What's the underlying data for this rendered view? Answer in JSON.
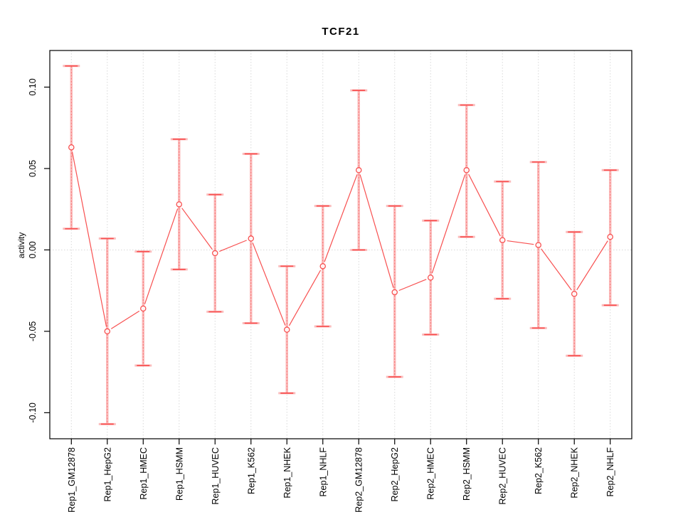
{
  "page": {
    "title": "TCF21"
  },
  "colors": {
    "point_red": "#f85050",
    "dash_red": "#f87c7c",
    "band_pink": "#fbbcbc",
    "grid_gray": "#d8d8d8",
    "axis_black": "#000000",
    "background": "#ffffff"
  },
  "chart_data": {
    "type": "line",
    "title": "TCF21",
    "xlabel": "",
    "ylabel": "activity",
    "legend": "none",
    "grid": "vertical dotted gridline at every category; horizontal dotted line at y=0 only",
    "marker": "open-circle",
    "error_bars": "vertical interval with end caps (pale wide band + thin dashed red line)",
    "ylim": [
      -0.116,
      0.1225
    ],
    "yticks": [
      -0.1,
      -0.05,
      0.0,
      0.05,
      0.1
    ],
    "ytick_labels": [
      "-0.10",
      "-0.05",
      "0.00",
      "0.05",
      "0.10"
    ],
    "categories": [
      "Rep1_GM12878",
      "Rep1_HepG2",
      "Rep1_HMEC",
      "Rep1_HSMM",
      "Rep1_HUVEC",
      "Rep1_K562",
      "Rep1_NHEK",
      "Rep1_NHLF",
      "Rep2_GM12878",
      "Rep2_HepG2",
      "Rep2_HMEC",
      "Rep2_HSMM",
      "Rep2_HUVEC",
      "Rep2_K562",
      "Rep2_NHEK",
      "Rep2_NHLF"
    ],
    "series": [
      {
        "name": "activity",
        "values": [
          0.063,
          -0.05,
          -0.036,
          0.028,
          -0.002,
          0.007,
          -0.049,
          -0.01,
          0.049,
          -0.026,
          -0.017,
          0.049,
          0.006,
          0.003,
          -0.027,
          0.008
        ],
        "upper": [
          0.113,
          0.007,
          -0.001,
          0.068,
          0.034,
          0.059,
          -0.01,
          0.027,
          0.098,
          0.027,
          0.018,
          0.089,
          0.042,
          0.054,
          0.011,
          0.049
        ],
        "lower": [
          0.013,
          -0.107,
          -0.071,
          -0.012,
          -0.038,
          -0.045,
          -0.088,
          -0.047,
          0.0,
          -0.078,
          -0.052,
          0.008,
          -0.03,
          -0.048,
          -0.065,
          -0.034
        ]
      }
    ]
  }
}
